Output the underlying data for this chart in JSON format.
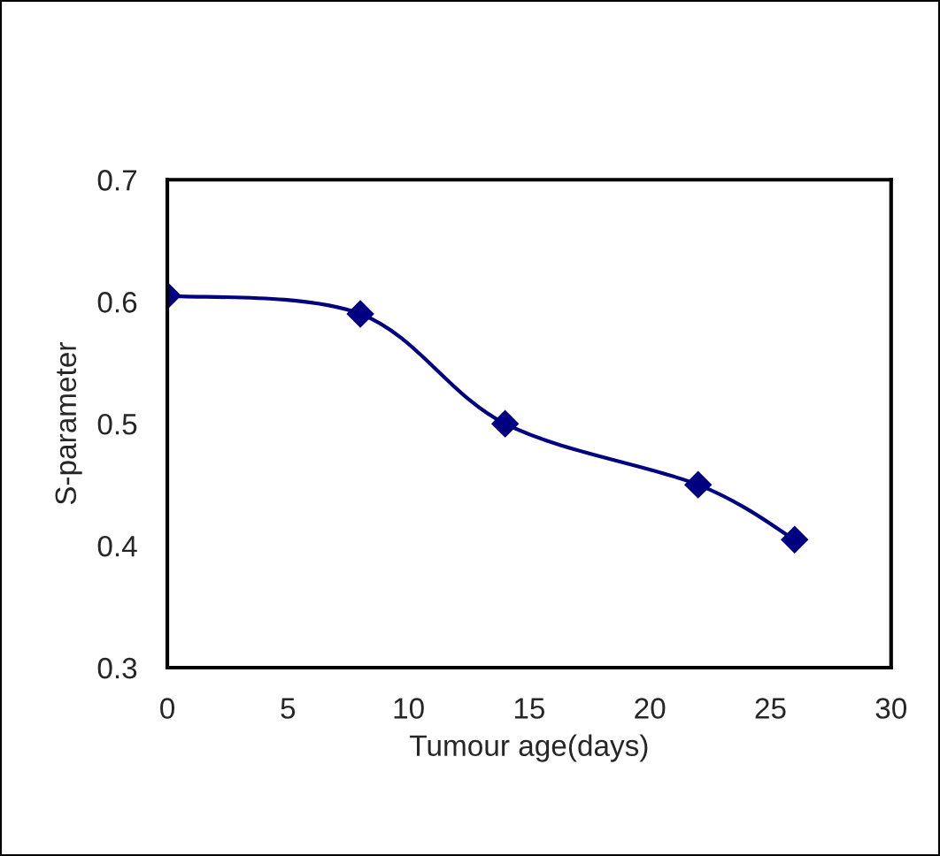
{
  "chart_data": {
    "type": "line",
    "xlabel": "Tumour age(days)",
    "ylabel": "S-parameter",
    "x": [
      0,
      8,
      14,
      22,
      26
    ],
    "series": [
      {
        "color": "#000080",
        "values": [
          0.605,
          0.59,
          0.5,
          0.45,
          0.405
        ]
      }
    ],
    "xlim": [
      0,
      30
    ],
    "xticks": [
      0,
      5,
      10,
      15,
      20,
      25,
      30
    ],
    "ylim": [
      0.3,
      0.7
    ],
    "yticks": [
      0.3,
      0.4,
      0.5,
      0.6,
      0.7
    ],
    "marker": "diamond",
    "line_style": "solid",
    "grid": false,
    "legend": false
  }
}
